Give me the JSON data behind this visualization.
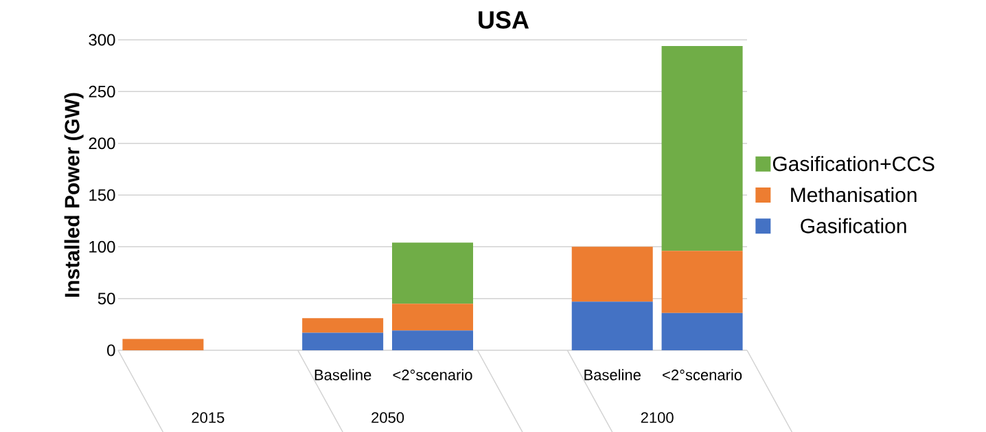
{
  "chart_data": {
    "type": "bar",
    "title": "USA",
    "ylabel": "Installed Power (GW)",
    "categories": [
      null,
      null,
      "Baseline",
      "<2°scenario",
      null,
      "Baseline",
      "<2°scenario"
    ],
    "annotations": [
      "2015",
      "2050",
      "2100"
    ],
    "stacked": true,
    "ylim": [
      0,
      300
    ],
    "yticks": [
      0,
      50,
      100,
      150,
      200,
      250,
      300
    ],
    "grid": "y",
    "legend": "right",
    "series": [
      {
        "name": "Gasification",
        "color": "#4472c4",
        "values": [
          null,
          null,
          17,
          19,
          null,
          47,
          36
        ]
      },
      {
        "name": "Methanisation",
        "color": "#ed7d31",
        "values": [
          11,
          null,
          14,
          26,
          null,
          53,
          60
        ]
      },
      {
        "name": "Gasification+CCS",
        "color": "#70ad47",
        "values": [
          null,
          null,
          null,
          59,
          null,
          null,
          198
        ]
      }
    ]
  }
}
